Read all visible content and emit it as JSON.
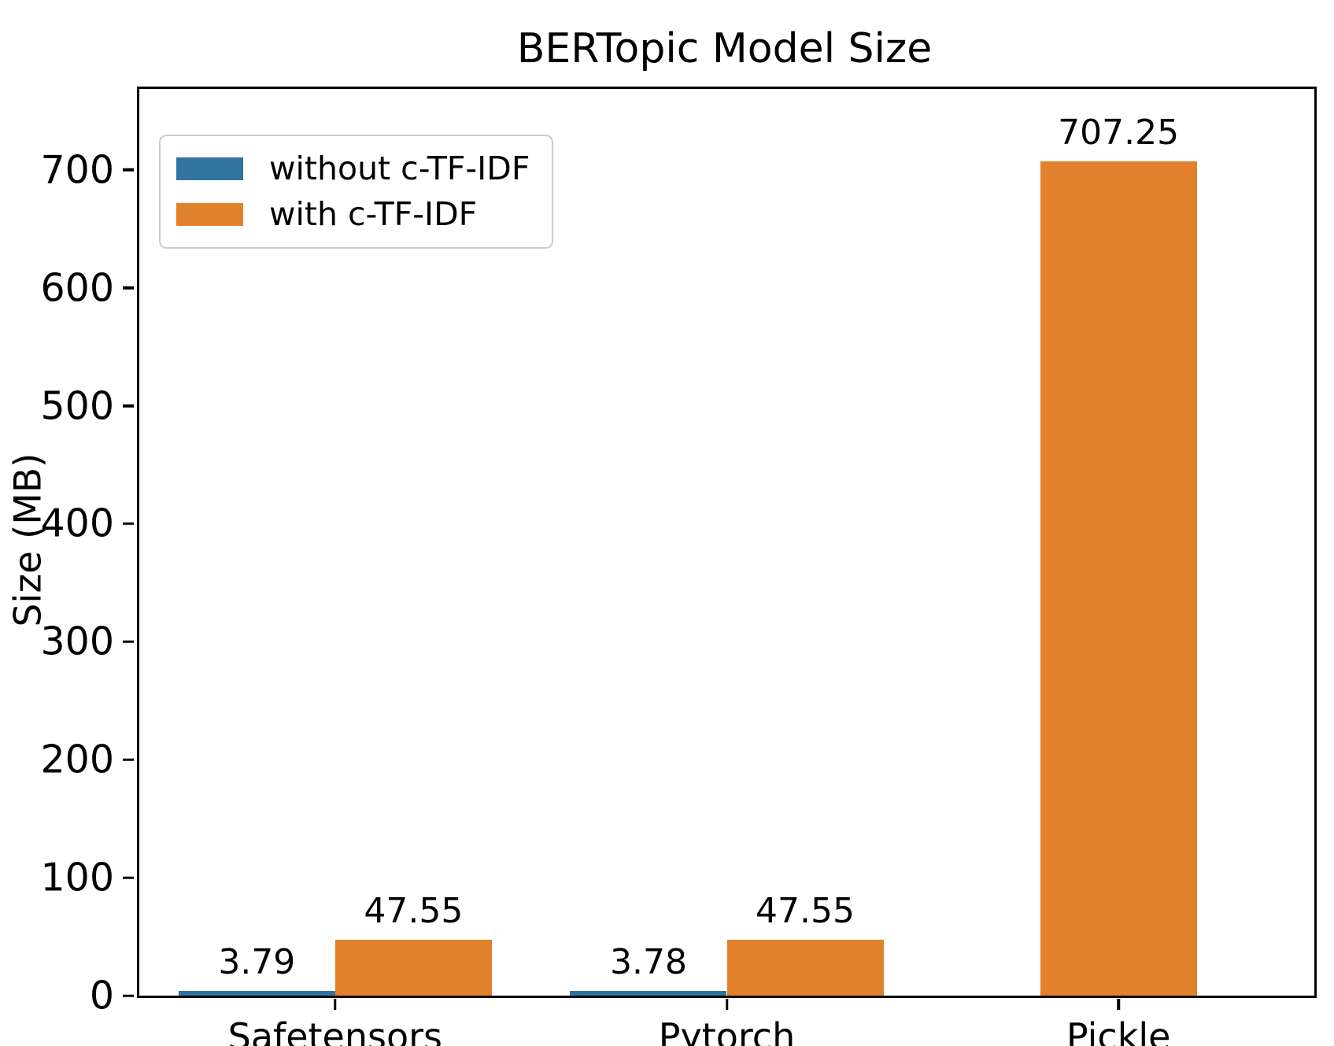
{
  "figure": {
    "title": "BERTopic Model Size",
    "ylabel": "Size (MB)"
  },
  "chart_data": {
    "type": "bar",
    "title": "BERTopic Model Size",
    "xlabel": "",
    "ylabel": "Size (MB)",
    "categories": [
      "Safetensors",
      "Pytorch",
      "Pickle"
    ],
    "series": [
      {
        "name": "without c-TF-IDF",
        "color": "#3274a1",
        "values": [
          3.79,
          3.78,
          null
        ]
      },
      {
        "name": "with c-TF-IDF",
        "color": "#e1812c",
        "values": [
          47.55,
          47.55,
          707.25
        ]
      }
    ],
    "bar_value_labels": [
      [
        "3.79",
        "3.78",
        null
      ],
      [
        "47.55",
        "47.55",
        "707.25"
      ]
    ],
    "yticks": [
      0,
      100,
      200,
      300,
      400,
      500,
      600,
      700
    ],
    "ylim": [
      0,
      768.5
    ],
    "grid": false,
    "legend_position": "upper left",
    "bar_width_fraction": 0.4
  }
}
